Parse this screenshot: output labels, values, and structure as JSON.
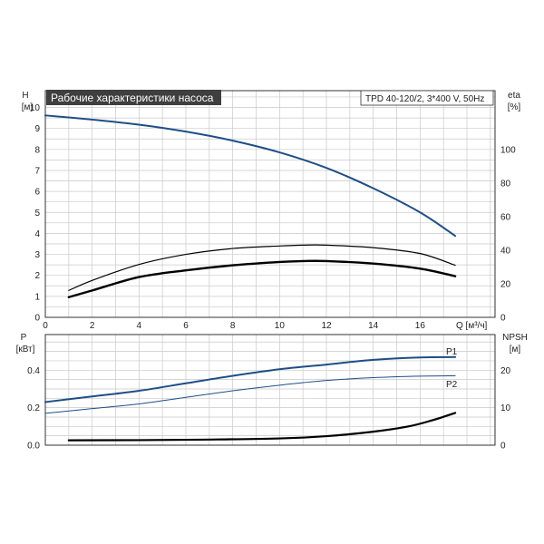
{
  "colors": {
    "grid": "#c9c9c9",
    "frame": "#333333",
    "pump_curve": "#1f4e86",
    "power_curve": "#1f4e86",
    "npsh_curve": "#000000",
    "eta_curve": "#000000",
    "title_bg": "#3f3f3f"
  },
  "chart_data": {
    "type": "line",
    "title": "Рабочие характеристики насоса",
    "model": "TPD 40-120/2, 3*400 V, 50Hz",
    "grid": true,
    "x": {
      "label": "Q [м³/ч]",
      "range": [
        0,
        19.2
      ],
      "ticks": [
        "0",
        "2",
        "4",
        "6",
        "8",
        "10",
        "12",
        "14",
        "16"
      ]
    },
    "top_panel": {
      "left_axis": {
        "label": "H",
        "unit": "[м]",
        "range": [
          0,
          10.8
        ],
        "ticks": [
          "0",
          "1",
          "2",
          "3",
          "4",
          "5",
          "6",
          "7",
          "8",
          "9",
          "10"
        ]
      },
      "right_axis": {
        "label": "eta",
        "unit": "[%]",
        "range": [
          0,
          135
        ],
        "ticks": [
          "0",
          "20",
          "40",
          "60",
          "80",
          "100"
        ]
      },
      "series": [
        {
          "axis": "left",
          "color_key": "pump_curve",
          "width": 2,
          "points": [
            [
              0,
              9.62
            ],
            [
              2,
              9.42
            ],
            [
              4,
              9.18
            ],
            [
              6,
              8.85
            ],
            [
              8,
              8.42
            ],
            [
              10,
              7.86
            ],
            [
              12,
              7.12
            ],
            [
              14,
              6.15
            ],
            [
              16,
              5.0
            ],
            [
              17.5,
              3.88
            ]
          ]
        },
        {
          "axis": "right",
          "color_key": "eta_curve",
          "width": 1.2,
          "points": [
            [
              1,
              16
            ],
            [
              2,
              22
            ],
            [
              4,
              31.5
            ],
            [
              6,
              37.5
            ],
            [
              8,
              41
            ],
            [
              10,
              42.5
            ],
            [
              11,
              43
            ],
            [
              12,
              43
            ],
            [
              14,
              41.5
            ],
            [
              16,
              38
            ],
            [
              17.5,
              31
            ]
          ]
        },
        {
          "axis": "right",
          "color_key": "eta_curve",
          "width": 2.4,
          "points": [
            [
              1,
              12
            ],
            [
              2,
              16
            ],
            [
              4,
              24
            ],
            [
              6,
              28
            ],
            [
              8,
              31
            ],
            [
              10,
              33
            ],
            [
              11,
              33.5
            ],
            [
              12,
              33.5
            ],
            [
              14,
              32
            ],
            [
              16,
              29
            ],
            [
              17.5,
              24.5
            ]
          ]
        }
      ]
    },
    "bottom_panel": {
      "left_axis": {
        "label": "P",
        "unit": "[кВт]",
        "range": [
          0,
          0.59
        ],
        "ticks": [
          "0.0",
          "0.2",
          "0.4"
        ]
      },
      "right_axis": {
        "label": "NPSH",
        "unit": "[м]",
        "range": [
          0,
          29.5
        ],
        "ticks": [
          "0",
          "10",
          "20"
        ]
      },
      "series": [
        {
          "name": "P1",
          "axis": "left",
          "color_key": "power_curve",
          "width": 2,
          "points": [
            [
              0,
              0.23
            ],
            [
              2,
              0.26
            ],
            [
              4,
              0.29
            ],
            [
              6,
              0.33
            ],
            [
              8,
              0.37
            ],
            [
              10,
              0.405
            ],
            [
              12,
              0.43
            ],
            [
              14,
              0.455
            ],
            [
              16,
              0.468
            ],
            [
              17.5,
              0.47
            ]
          ]
        },
        {
          "name": "P2",
          "axis": "left",
          "color_key": "power_curve",
          "width": 1,
          "points": [
            [
              0,
              0.17
            ],
            [
              2,
              0.195
            ],
            [
              4,
              0.22
            ],
            [
              6,
              0.255
            ],
            [
              8,
              0.29
            ],
            [
              10,
              0.32
            ],
            [
              12,
              0.345
            ],
            [
              14,
              0.36
            ],
            [
              16,
              0.368
            ],
            [
              17.5,
              0.37
            ]
          ]
        },
        {
          "axis": "right",
          "color_key": "npsh_curve",
          "width": 2.2,
          "points": [
            [
              1,
              1.3
            ],
            [
              4,
              1.35
            ],
            [
              7,
              1.5
            ],
            [
              10,
              1.8
            ],
            [
              12,
              2.4
            ],
            [
              14,
              3.6
            ],
            [
              15.5,
              5.0
            ],
            [
              16.5,
              6.6
            ],
            [
              17.5,
              8.6
            ]
          ]
        }
      ]
    }
  }
}
